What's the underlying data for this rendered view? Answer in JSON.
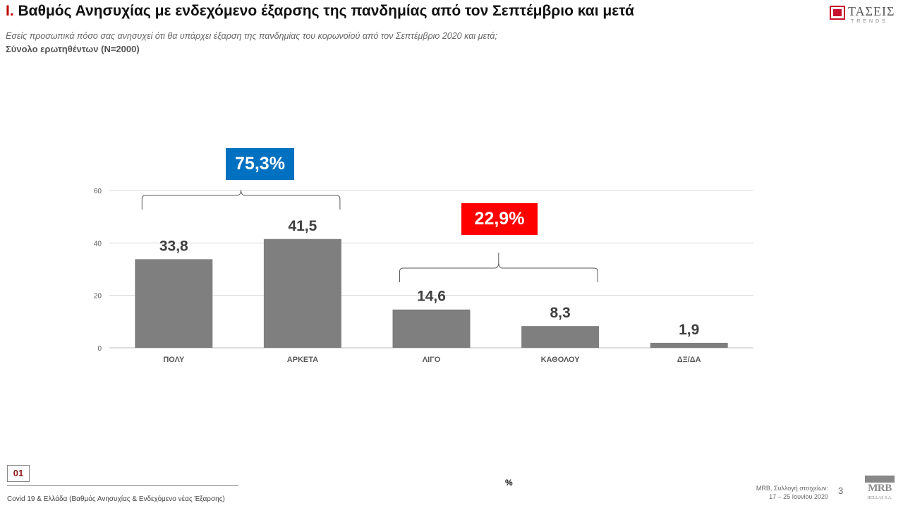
{
  "header": {
    "title_number": "I.",
    "title_text": "Βαθμός Ανησυχίας με ενδεχόμενο έξαρσης της πανδημίας από τον Σεπτέμβριο και μετά",
    "subtitle": "Εσείς προσωπικά πόσο σας ανησυχεί ότι θα υπάρχει έξαρση της πανδημίας του κορωνοϊού από τον Σεπτέμβριο 2020 και μετά;",
    "base": "Σύνολο ερωτηθέντων (N=2000)",
    "logo_name": "ΤΑΣΕΙΣ",
    "logo_sub": "TRENDS"
  },
  "chart_data": {
    "type": "bar",
    "categories": [
      "ΠΟΛΥ",
      "ΑΡΚΕΤΑ",
      "ΛΙΓΟ",
      "ΚΑΘΟΛΟΥ",
      "ΔΞ/ΔΑ"
    ],
    "values": [
      33.8,
      41.5,
      14.6,
      8.3,
      1.9
    ],
    "value_labels": [
      "33,8",
      "41,5",
      "14,6",
      "8,3",
      "1,9"
    ],
    "yticks": [
      0,
      20,
      40,
      60
    ],
    "ylim": [
      0,
      60
    ],
    "grid": true,
    "bar_color": "#7f7f7f",
    "unit": "%",
    "groups": [
      {
        "label": "75,3%",
        "from": 0,
        "to": 1,
        "color": "#0070c0"
      },
      {
        "label": "22,9%",
        "from": 2,
        "to": 3,
        "color": "#ff0000"
      }
    ]
  },
  "footer": {
    "page_tag": "01",
    "description": "Covid 19 & Ελλάδα (Βαθμός Ανησυχίας & Ενδεχόμενο νέας Έξαρσης)",
    "source_line1": "MRB, Συλλογή στοιχείων:",
    "source_line2": "17 – 25 Ιουνίου 2020",
    "page_number": "3",
    "logo_name": "MRB",
    "logo_sub": "HELLAS S.A."
  }
}
